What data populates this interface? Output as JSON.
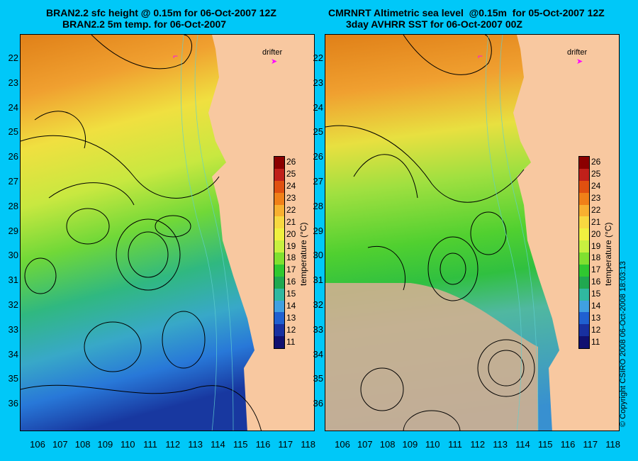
{
  "left_panel": {
    "title_line1": "BRAN2.2 sfc height @ 0.15m for 06-Oct-2007 12Z",
    "title_line2": "BRAN2.2 5m temp. for 06-Oct-2007"
  },
  "right_panel": {
    "title_line1": "CMRNRT Altimetric sea level  @0.15m  for 05-Oct-2007 12Z",
    "title_line2": "3day AVHRR SST for 06-Oct-2007 00Z"
  },
  "lat_labels": [
    "22",
    "23",
    "24",
    "25",
    "26",
    "27",
    "28",
    "29",
    "30",
    "31",
    "32",
    "33",
    "34",
    "35",
    "36"
  ],
  "lon_labels": [
    "106",
    "107",
    "108",
    "109",
    "110",
    "111",
    "112",
    "113",
    "114",
    "115",
    "116",
    "117",
    "118"
  ],
  "colorbar": {
    "title": "temperature (°C)",
    "ticks": [
      "26",
      "25",
      "24",
      "23",
      "22",
      "21",
      "20",
      "19",
      "18",
      "17",
      "16",
      "15",
      "14",
      "13",
      "12",
      "11"
    ],
    "colors": [
      "#8b0000",
      "#c0201a",
      "#e05010",
      "#f08018",
      "#f8b030",
      "#f8d840",
      "#f0f040",
      "#c8f040",
      "#80e030",
      "#30c830",
      "#20a850",
      "#30b8a0",
      "#40a0e0",
      "#2060d0",
      "#1830a0",
      "#101070"
    ]
  },
  "drifter_label": "drifter",
  "copyright": "© Copyright CSIRO 2008    06-Oct-2008 18:03:13",
  "colors": {
    "background": "#00c8f8",
    "land": "#f8c8a0",
    "no_data": "#d0b090",
    "drifter": "#ff00ff"
  }
}
